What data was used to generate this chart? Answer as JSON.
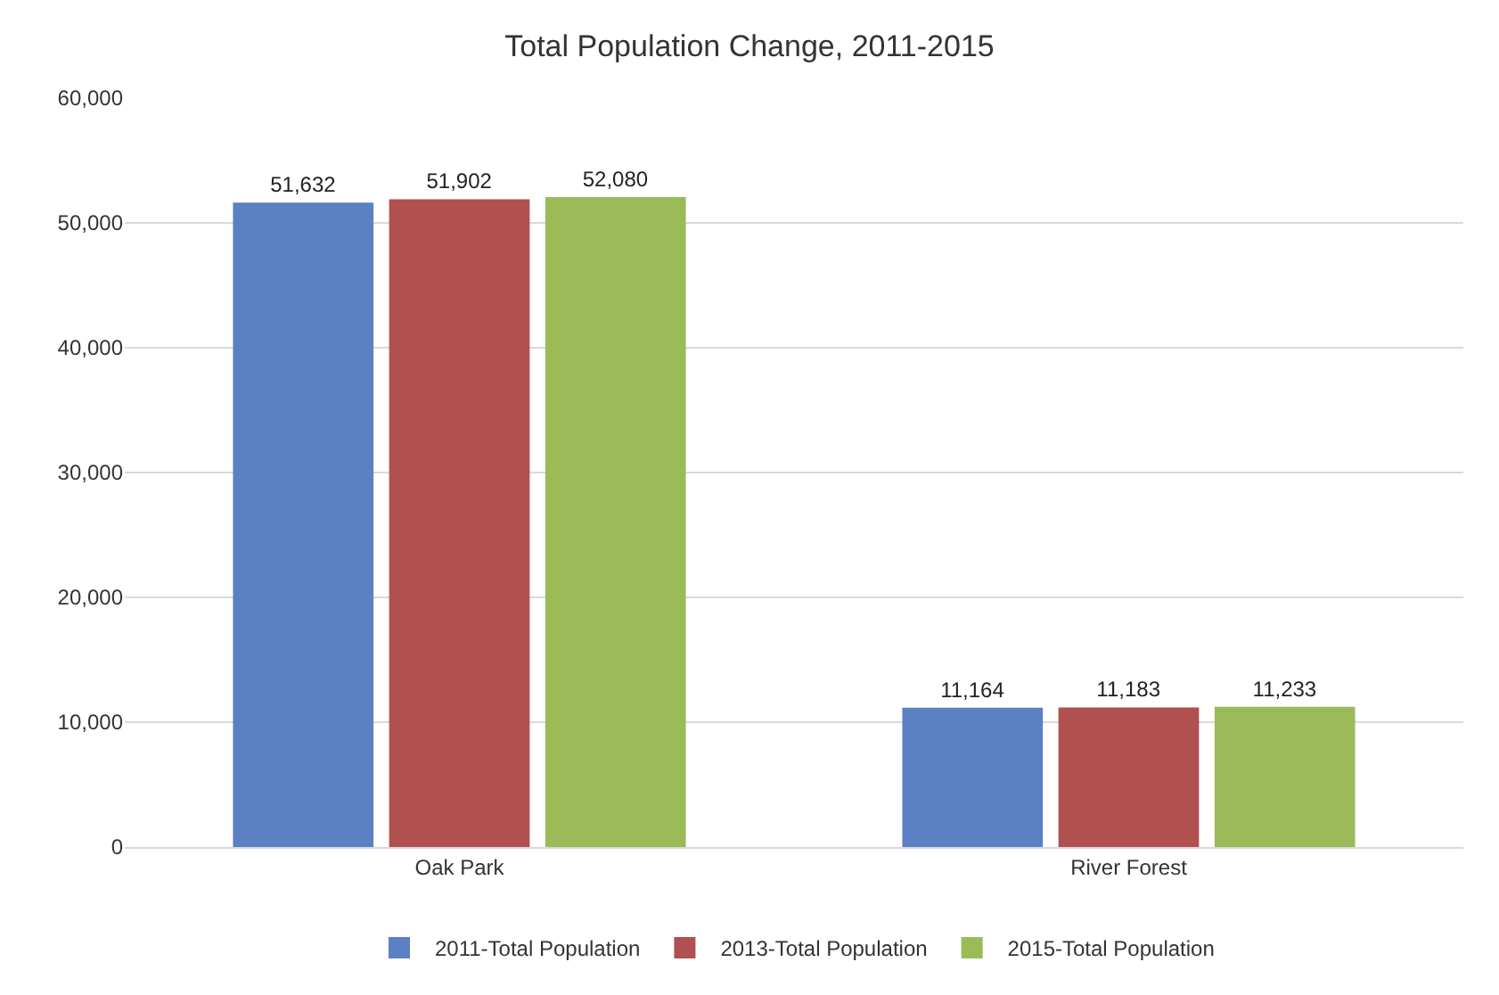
{
  "chart_data": {
    "type": "bar",
    "title": "Total Population Change, 2011-2015",
    "categories": [
      "Oak Park",
      "River Forest"
    ],
    "series": [
      {
        "name": "2011-Total Population",
        "color": "#5b80c4",
        "values": [
          51632,
          11164
        ],
        "value_labels": [
          "51,632",
          "11,164"
        ]
      },
      {
        "name": "2013-Total Population",
        "color": "#b0504f",
        "values": [
          51902,
          11183
        ],
        "value_labels": [
          "51,902",
          "11,183"
        ]
      },
      {
        "name": "2015-Total Population",
        "color": "#9bbb59",
        "values": [
          52080,
          11233
        ],
        "value_labels": [
          "52,080",
          "11,233"
        ]
      }
    ],
    "ylim": [
      0,
      60000
    ],
    "yticks": [
      {
        "value": 0,
        "label": "0"
      },
      {
        "value": 10000,
        "label": "10,000"
      },
      {
        "value": 20000,
        "label": "20,000"
      },
      {
        "value": 30000,
        "label": "30,000"
      },
      {
        "value": 40000,
        "label": "40,000"
      },
      {
        "value": 50000,
        "label": "50,000"
      },
      {
        "value": 60000,
        "label": "60,000"
      }
    ],
    "grid": "y",
    "legend": "bottom"
  }
}
